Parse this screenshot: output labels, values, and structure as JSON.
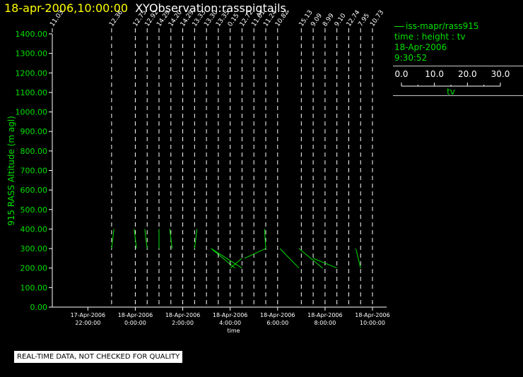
{
  "header": {
    "datetime": "18-apr-2006,10:00:00",
    "observation": "XYObservation:rasspigtails."
  },
  "legend": {
    "series_label": "iss-mapr/rass915",
    "desc": "time : height : tv",
    "date": "18-Apr-2006",
    "time": "9:30:52",
    "scale_ticks": [
      "0.0",
      "10.0",
      "20.0",
      "30.0"
    ],
    "scale_label": "tv"
  },
  "notice": "REAL-TIME DATA, NOT CHECKED FOR QUALITY",
  "colors": {
    "background": "#000000",
    "axis": "#ffffff",
    "ylabel": "#00e000",
    "trace": "#00e000",
    "title_date": "#ffff00"
  },
  "chart_data": {
    "type": "line",
    "title": "XYObservation:rasspigtails.",
    "xlabel": "time",
    "ylabel": "915 RASS Altitude (m agl)",
    "ylim": [
      0,
      1400
    ],
    "yticks": [
      "0.00",
      "100.00",
      "200.00",
      "300.00",
      "400.00",
      "500.00",
      "600.00",
      "700.00",
      "800.00",
      "900.00",
      "1000.00",
      "1100.00",
      "1200.00",
      "1300.00",
      "1400.00"
    ],
    "xticks": [
      {
        "date": "17-Apr-2006",
        "time": "22:00:00",
        "hour": 22
      },
      {
        "date": "18-Apr-2006",
        "time": "0:00:00",
        "hour": 24
      },
      {
        "date": "18-Apr-2006",
        "time": "2:00:00",
        "hour": 26
      },
      {
        "date": "18-Apr-2006",
        "time": "4:00:00",
        "hour": 28
      },
      {
        "date": "18-Apr-2006",
        "time": "6:00:00",
        "hour": 30
      },
      {
        "date": "18-Apr-2006",
        "time": "8:00:00",
        "hour": 32
      },
      {
        "date": "18-Apr-2006",
        "time": "10:00:00",
        "hour": 34
      }
    ],
    "xlim": [
      20.5,
      34
    ],
    "profiles": [
      {
        "hour": 20.5,
        "label": "11.03",
        "points": []
      },
      {
        "hour": 23.0,
        "label": "12.36",
        "points": [
          [
            23.0,
            300
          ],
          [
            23.1,
            400
          ]
        ]
      },
      {
        "hour": 24.0,
        "label": "12.75",
        "points": [
          [
            23.95,
            400
          ],
          [
            24.05,
            300
          ]
        ]
      },
      {
        "hour": 24.5,
        "label": "12.92",
        "points": [
          [
            24.4,
            400
          ],
          [
            24.5,
            300
          ]
        ]
      },
      {
        "hour": 25.0,
        "label": "14.29",
        "points": [
          [
            25.0,
            400
          ],
          [
            25.0,
            300
          ]
        ]
      },
      {
        "hour": 25.5,
        "label": "14.20",
        "points": [
          [
            25.45,
            400
          ],
          [
            25.55,
            300
          ]
        ]
      },
      {
        "hour": 26.0,
        "label": "14.29",
        "points": []
      },
      {
        "hour": 26.5,
        "label": "13.33",
        "points": [
          [
            26.5,
            300
          ],
          [
            26.6,
            400
          ]
        ]
      },
      {
        "hour": 27.0,
        "label": "13.30",
        "points": [
          [
            27.2,
            300
          ],
          [
            28.2,
            200
          ]
        ]
      },
      {
        "hour": 27.5,
        "label": "13.35",
        "points": []
      },
      {
        "hour": 28.0,
        "label": "0.15",
        "points": [
          [
            28.0,
            200
          ],
          [
            28.5,
            250
          ]
        ]
      },
      {
        "hour": 28.5,
        "label": "12.72",
        "points": [
          [
            28.5,
            200
          ],
          [
            27.2,
            300
          ]
        ]
      },
      {
        "hour": 29.0,
        "label": "11.61",
        "points": [
          [
            28.6,
            250
          ],
          [
            29.5,
            300
          ]
        ]
      },
      {
        "hour": 29.5,
        "label": "11.24",
        "points": [
          [
            29.5,
            300
          ],
          [
            29.45,
            400
          ]
        ]
      },
      {
        "hour": 30.0,
        "label": "10.82",
        "points": [
          [
            30.1,
            300
          ],
          [
            30.9,
            200
          ]
        ]
      },
      {
        "hour": 31.0,
        "label": "15.13",
        "points": [
          [
            30.9,
            300
          ],
          [
            31.9,
            200
          ]
        ]
      },
      {
        "hour": 31.5,
        "label": "9.09",
        "points": []
      },
      {
        "hour": 32.0,
        "label": "8.99",
        "points": [
          [
            31.5,
            250
          ],
          [
            32.5,
            200
          ]
        ]
      },
      {
        "hour": 32.5,
        "label": "9.10",
        "points": []
      },
      {
        "hour": 33.0,
        "label": "12.74",
        "points": []
      },
      {
        "hour": 33.5,
        "label": "7.95",
        "points": [
          [
            33.3,
            300
          ],
          [
            33.5,
            200
          ]
        ]
      },
      {
        "hour": 34.0,
        "label": "10.73",
        "points": []
      }
    ]
  }
}
